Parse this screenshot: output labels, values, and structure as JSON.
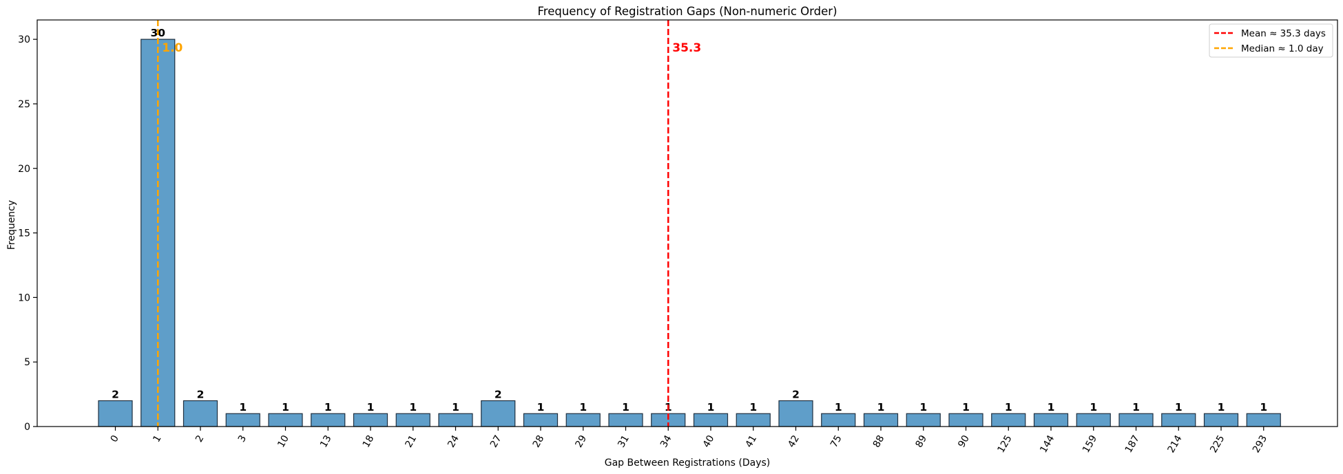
{
  "chart_data": {
    "type": "bar",
    "title": "Frequency of Registration Gaps (Non-numeric Order)",
    "xlabel": "Gap Between Registrations (Days)",
    "ylabel": "Frequency",
    "categories": [
      "0",
      "1",
      "2",
      "3",
      "10",
      "13",
      "18",
      "21",
      "24",
      "27",
      "28",
      "29",
      "31",
      "34",
      "40",
      "41",
      "42",
      "75",
      "88",
      "89",
      "90",
      "125",
      "144",
      "159",
      "187",
      "214",
      "225",
      "293"
    ],
    "values": [
      2,
      30,
      2,
      1,
      1,
      1,
      1,
      1,
      1,
      2,
      1,
      1,
      1,
      1,
      1,
      1,
      2,
      1,
      1,
      1,
      1,
      1,
      1,
      1,
      1,
      1,
      1,
      1
    ],
    "ylim": [
      0,
      31.5
    ],
    "yticks": [
      0,
      5,
      10,
      15,
      20,
      25,
      30
    ],
    "x_tick_rotation": 60,
    "grid": false,
    "bar_color": "#5f9ec9",
    "bar_edge_color": "#1f2f3f",
    "reference_lines": [
      {
        "name": "mean",
        "category_position": 13.0,
        "color": "#ff0000",
        "label": "35.3",
        "legend": "Mean ≈ 35.3 days"
      },
      {
        "name": "median",
        "category_position": 1.0,
        "color": "#ffa500",
        "label": "1.0",
        "legend": "Median ≈ 1.0 day"
      }
    ],
    "legend_position": "top-right"
  }
}
